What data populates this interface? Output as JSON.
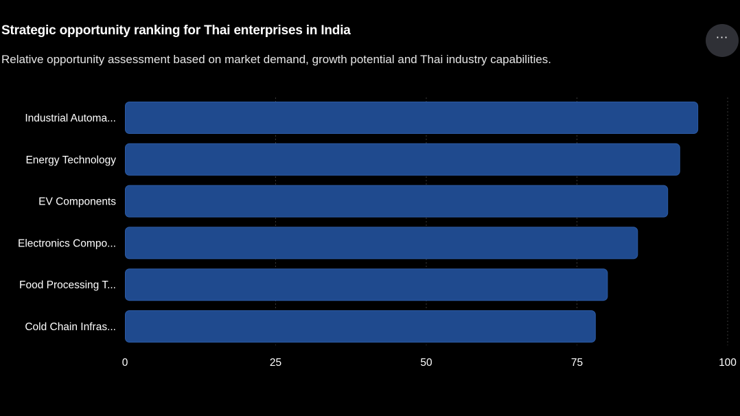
{
  "header": {
    "title": "Strategic opportunity ranking for Thai enterprises in India",
    "subtitle": "Relative opportunity assessment based on market demand, growth potential and Thai industry capabilities.",
    "menu_icon": "more-horizontal-icon",
    "menu_glyph": "···"
  },
  "colors": {
    "bar_fill": "#1f4a8e",
    "bar_stroke": "#2c5aa3",
    "grid": "#3a3a3a",
    "background": "#000000"
  },
  "chart_data": {
    "type": "bar",
    "orientation": "horizontal",
    "title": "Strategic opportunity ranking for Thai enterprises in India",
    "subtitle": "Relative opportunity assessment based on market demand, growth potential and Thai industry capabilities.",
    "categories": [
      "Industrial Automa...",
      "Energy Technology",
      "EV Components",
      "Electronics Compo...",
      "Food Processing T...",
      "Cold Chain Infras..."
    ],
    "values": [
      95,
      92,
      90,
      85,
      80,
      78
    ],
    "xlim": [
      0,
      100
    ],
    "xticks": [
      0,
      25,
      50,
      75,
      100
    ],
    "xlabel": "",
    "ylabel": "",
    "grid": true
  }
}
